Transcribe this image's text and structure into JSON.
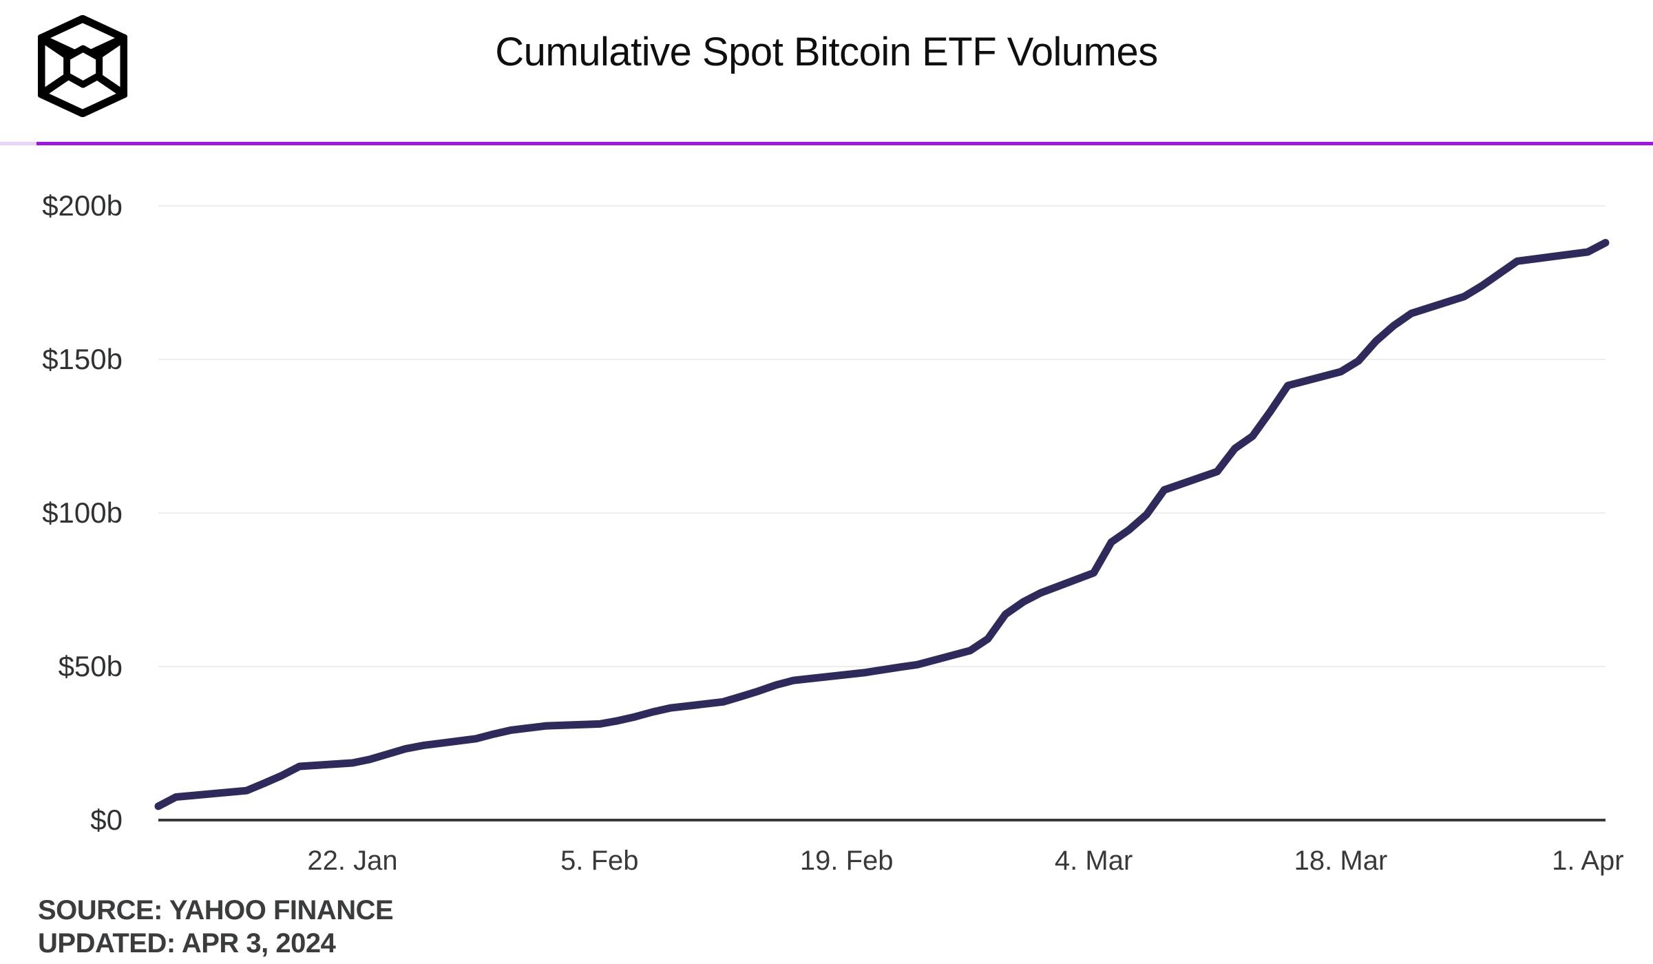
{
  "header": {
    "title": "Cumulative Spot Bitcoin ETF Volumes",
    "logo_icon": "block-cube-logo",
    "divider_color_main": "#a312ec",
    "divider_color_light": "#e9d3f8"
  },
  "footer": {
    "source": "SOURCE: YAHOO FINANCE",
    "updated": "UPDATED: APR 3, 2024"
  },
  "chart_data": {
    "type": "line",
    "title": "Cumulative Spot Bitcoin ETF Volumes",
    "legend": false,
    "grid": "horizontal",
    "grid_color": "#ededed",
    "axis_color": "#3a3a3a",
    "x_axis": {
      "type": "date",
      "range": [
        "2024-01-11",
        "2024-04-02"
      ],
      "ticks": [
        {
          "date": "2024-01-22",
          "label": "22. Jan"
        },
        {
          "date": "2024-02-05",
          "label": "5. Feb"
        },
        {
          "date": "2024-02-19",
          "label": "19. Feb"
        },
        {
          "date": "2024-03-04",
          "label": "4. Mar"
        },
        {
          "date": "2024-03-18",
          "label": "18. Mar"
        },
        {
          "date": "2024-04-01",
          "label": "1. Apr"
        }
      ]
    },
    "y_axis": {
      "unit": "billions USD",
      "range": [
        0,
        200
      ],
      "ticks": [
        {
          "value": 0,
          "label": "$0"
        },
        {
          "value": 50,
          "label": "$50b"
        },
        {
          "value": 100,
          "label": "$100b"
        },
        {
          "value": 150,
          "label": "$150b"
        },
        {
          "value": 200,
          "label": "$200b"
        }
      ]
    },
    "series": [
      {
        "name": "Cumulative Spot Bitcoin ETF Volume ($b)",
        "color": "#2e2a5c",
        "points": [
          [
            "2024-01-11",
            4.5
          ],
          [
            "2024-01-12",
            7.5
          ],
          [
            "2024-01-16",
            9.6
          ],
          [
            "2024-01-17",
            12.0
          ],
          [
            "2024-01-18",
            14.5
          ],
          [
            "2024-01-19",
            17.5
          ],
          [
            "2024-01-22",
            18.6
          ],
          [
            "2024-01-23",
            19.8
          ],
          [
            "2024-01-24",
            21.5
          ],
          [
            "2024-01-25",
            23.2
          ],
          [
            "2024-01-26",
            24.3
          ],
          [
            "2024-01-29",
            26.5
          ],
          [
            "2024-01-30",
            28.0
          ],
          [
            "2024-01-31",
            29.3
          ],
          [
            "2024-02-01",
            30.0
          ],
          [
            "2024-02-02",
            30.7
          ],
          [
            "2024-02-05",
            31.3
          ],
          [
            "2024-02-06",
            32.3
          ],
          [
            "2024-02-07",
            33.6
          ],
          [
            "2024-02-08",
            35.2
          ],
          [
            "2024-02-09",
            36.5
          ],
          [
            "2024-02-12",
            38.5
          ],
          [
            "2024-02-13",
            40.2
          ],
          [
            "2024-02-14",
            42.0
          ],
          [
            "2024-02-15",
            44.0
          ],
          [
            "2024-02-16",
            45.5
          ],
          [
            "2024-02-20",
            48.0
          ],
          [
            "2024-02-21",
            48.9
          ],
          [
            "2024-02-22",
            49.8
          ],
          [
            "2024-02-23",
            50.6
          ],
          [
            "2024-02-26",
            55.2
          ],
          [
            "2024-02-27",
            59.0
          ],
          [
            "2024-02-28",
            67.0
          ],
          [
            "2024-02-29",
            71.0
          ],
          [
            "2024-03-01",
            74.0
          ],
          [
            "2024-03-04",
            80.5
          ],
          [
            "2024-03-05",
            90.5
          ],
          [
            "2024-03-06",
            94.5
          ],
          [
            "2024-03-07",
            99.5
          ],
          [
            "2024-03-08",
            107.5
          ],
          [
            "2024-03-11",
            113.5
          ],
          [
            "2024-03-12",
            121.0
          ],
          [
            "2024-03-13",
            125.0
          ],
          [
            "2024-03-14",
            133.0
          ],
          [
            "2024-03-15",
            141.5
          ],
          [
            "2024-03-18",
            146.0
          ],
          [
            "2024-03-19",
            149.5
          ],
          [
            "2024-03-20",
            156.0
          ],
          [
            "2024-03-21",
            161.0
          ],
          [
            "2024-03-22",
            165.0
          ],
          [
            "2024-03-25",
            170.5
          ],
          [
            "2024-03-26",
            174.0
          ],
          [
            "2024-03-27",
            178.0
          ],
          [
            "2024-03-28",
            182.0
          ],
          [
            "2024-04-01",
            185.0
          ],
          [
            "2024-04-02",
            188.0
          ]
        ]
      }
    ]
  }
}
